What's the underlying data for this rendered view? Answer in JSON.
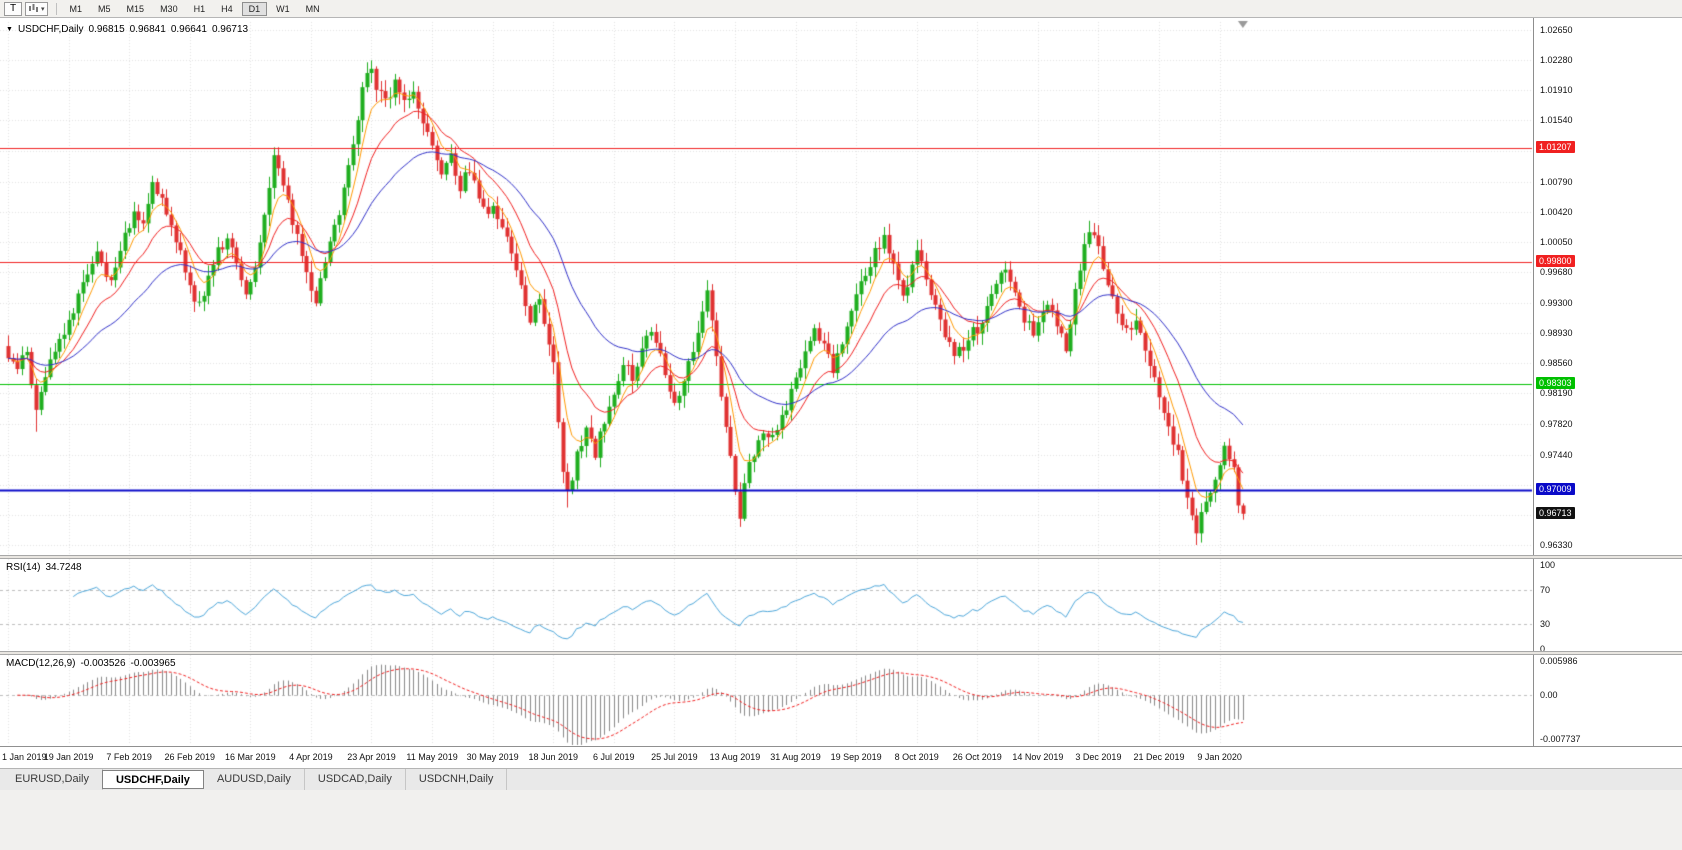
{
  "icons": {
    "text_tool": "T",
    "dropdown_arrow": "▾",
    "symbol_marker": "▼"
  },
  "toolbar": {
    "timeframes": [
      "M1",
      "M5",
      "M15",
      "M30",
      "H1",
      "H4",
      "D1",
      "W1",
      "MN"
    ],
    "active_timeframe": "D1"
  },
  "header": {
    "symbol": "USDCHF,Daily",
    "open": "0.96815",
    "high": "0.96841",
    "low": "0.96641",
    "close": "0.96713"
  },
  "indicators": {
    "rsi": {
      "label": "RSI(14)",
      "value": "34.7248",
      "levels": [
        70,
        30
      ],
      "scale": [
        {
          "text": "100",
          "value": 100
        },
        {
          "text": "70",
          "value": 70
        },
        {
          "text": "30",
          "value": 30
        },
        {
          "text": "0",
          "value": 0
        }
      ]
    },
    "macd": {
      "label": "MACD(12,26,9)",
      "value_macd": "-0.003526",
      "value_signal": "-0.003965",
      "scale": [
        {
          "text": "0.005986",
          "value": 0.005986
        },
        {
          "text": "0.00",
          "value": 0
        },
        {
          "text": "-0.007737",
          "value": -0.007737
        }
      ]
    }
  },
  "tabs": [
    {
      "label": "EURUSD,Daily",
      "active": false
    },
    {
      "label": "USDCHF,Daily",
      "active": true
    },
    {
      "label": "AUDUSD,Daily",
      "active": false
    },
    {
      "label": "USDCAD,Daily",
      "active": false
    },
    {
      "label": "USDCNH,Daily",
      "active": false
    }
  ],
  "chart_data": {
    "type": "candlestick",
    "symbol": "USDCHF",
    "timeframe": "Daily",
    "bars_total": 266,
    "x_ticks": {
      "bar_step": 13,
      "labels": [
        "1 Jan 2019",
        "19 Jan 2019",
        "7 Feb 2019",
        "26 Feb 2019",
        "16 Mar 2019",
        "4 Apr 2019",
        "23 Apr 2019",
        "11 May 2019",
        "30 May 2019",
        "18 Jun 2019",
        "6 Jul 2019",
        "25 Jul 2019",
        "13 Aug 2019",
        "31 Aug 2019",
        "19 Sep 2019",
        "8 Oct 2019",
        "26 Oct 2019",
        "14 Nov 2019",
        "3 Dec 2019",
        "21 Dec 2019",
        "9 Jan 2020"
      ]
    },
    "y_axis": {
      "tick_values": [
        1.0265,
        1.0228,
        1.0191,
        1.0154,
        1.0079,
        1.0042,
        1.0005,
        0.9968,
        0.993,
        0.9893,
        0.9856,
        0.9819,
        0.9782,
        0.9744,
        0.9633
      ],
      "hidden_grid": [
        1.0117,
        0.9707,
        0.967
      ]
    },
    "current_bar": {
      "open": 0.96815,
      "high": 0.96841,
      "low": 0.96641,
      "close": 0.96713
    },
    "horizontal_lines": [
      {
        "value": 1.01207,
        "color": "#f02020",
        "width": 1
      },
      {
        "value": 0.998,
        "color": "#f02020",
        "width": 1
      },
      {
        "value": 0.98303,
        "color": "#00c000",
        "width": 1
      },
      {
        "value": 0.97009,
        "color": "#0a0ac8",
        "width": 2
      }
    ],
    "moving_averages": [
      {
        "period": 6,
        "color": "#ff9900"
      },
      {
        "period": 14,
        "color": "#f02020"
      },
      {
        "period": 34,
        "color": "#3030c8"
      }
    ],
    "rsi": {
      "period": 14
    },
    "macd": {
      "fast": 12,
      "slow": 26,
      "signal": 9,
      "scale_max": 0.005986,
      "scale_min": -0.007737
    },
    "colors": {
      "up": "#1fae1f",
      "down": "#e03232",
      "grid": "#e3e3e3",
      "rsi_line": "#4da6d9",
      "rsi_levels": "#bdbdbd",
      "macd_hist": "#8a8a8a",
      "macd_signal": "#f02020"
    },
    "price_path": [
      [
        0,
        0.9868
      ],
      [
        2,
        0.9845
      ],
      [
        4,
        0.9872
      ],
      [
        6,
        0.9795
      ],
      [
        7,
        0.9822
      ],
      [
        9,
        0.9858
      ],
      [
        11,
        0.9888
      ],
      [
        13,
        0.9902
      ],
      [
        15,
        0.9938
      ],
      [
        17,
        0.9972
      ],
      [
        19,
        0.9995
      ],
      [
        21,
        0.9958
      ],
      [
        23,
        0.9972
      ],
      [
        25,
        1.0012
      ],
      [
        27,
        1.0038
      ],
      [
        29,
        1.0022
      ],
      [
        31,
        1.0082
      ],
      [
        33,
        1.0058
      ],
      [
        35,
        1.0025
      ],
      [
        37,
        0.9992
      ],
      [
        39,
        0.9948
      ],
      [
        41,
        0.9925
      ],
      [
        43,
        0.9962
      ],
      [
        45,
        0.9992
      ],
      [
        47,
        1.0012
      ],
      [
        49,
        0.9985
      ],
      [
        51,
        0.9942
      ],
      [
        53,
        0.9975
      ],
      [
        55,
        1.0042
      ],
      [
        57,
        1.0112
      ],
      [
        58,
        1.0095
      ],
      [
        60,
        1.0052
      ],
      [
        62,
        1.0008
      ],
      [
        64,
        0.9965
      ],
      [
        66,
        0.9932
      ],
      [
        68,
        0.9982
      ],
      [
        70,
        1.0022
      ],
      [
        72,
        1.0068
      ],
      [
        74,
        1.0125
      ],
      [
        76,
        1.0188
      ],
      [
        78,
        1.0222
      ],
      [
        79,
        1.0196
      ],
      [
        81,
        1.0178
      ],
      [
        83,
        1.0198
      ],
      [
        85,
        1.0172
      ],
      [
        87,
        1.0195
      ],
      [
        89,
        1.0148
      ],
      [
        91,
        1.0122
      ],
      [
        93,
        1.0085
      ],
      [
        95,
        1.0108
      ],
      [
        97,
        1.0072
      ],
      [
        99,
        1.0095
      ],
      [
        101,
        1.0058
      ],
      [
        103,
        1.0042
      ],
      [
        104,
        1.0052
      ],
      [
        106,
        1.0022
      ],
      [
        108,
        0.9988
      ],
      [
        110,
        0.9952
      ],
      [
        112,
        0.9912
      ],
      [
        114,
        0.9932
      ],
      [
        116,
        0.9885
      ],
      [
        117,
        0.9858
      ],
      [
        118,
        0.9788
      ],
      [
        119,
        0.9722
      ],
      [
        120,
        0.9695
      ],
      [
        121,
        0.9715
      ],
      [
        122,
        0.9748
      ],
      [
        124,
        0.9775
      ],
      [
        126,
        0.9742
      ],
      [
        128,
        0.9788
      ],
      [
        130,
        0.9822
      ],
      [
        132,
        0.9858
      ],
      [
        134,
        0.9838
      ],
      [
        136,
        0.9878
      ],
      [
        138,
        0.9898
      ],
      [
        140,
        0.9868
      ],
      [
        142,
        0.9828
      ],
      [
        143,
        0.9808
      ],
      [
        145,
        0.9838
      ],
      [
        147,
        0.9872
      ],
      [
        149,
        0.9912
      ],
      [
        150,
        0.9952
      ],
      [
        151,
        0.9905
      ],
      [
        153,
        0.9812
      ],
      [
        155,
        0.9738
      ],
      [
        156,
        0.9702
      ],
      [
        157,
        0.9668
      ],
      [
        158,
        0.9712
      ],
      [
        160,
        0.9748
      ],
      [
        162,
        0.9775
      ],
      [
        164,
        0.9762
      ],
      [
        166,
        0.9792
      ],
      [
        168,
        0.9818
      ],
      [
        169,
        0.9832
      ],
      [
        171,
        0.9868
      ],
      [
        173,
        0.9892
      ],
      [
        175,
        0.9875
      ],
      [
        177,
        0.9848
      ],
      [
        179,
        0.9885
      ],
      [
        181,
        0.9922
      ],
      [
        182,
        0.9938
      ],
      [
        184,
        0.9968
      ],
      [
        186,
        0.9992
      ],
      [
        188,
        1.0012
      ],
      [
        190,
        0.9972
      ],
      [
        192,
        0.9938
      ],
      [
        194,
        0.9975
      ],
      [
        195,
        0.9992
      ],
      [
        197,
        0.9962
      ],
      [
        199,
        0.9928
      ],
      [
        201,
        0.9892
      ],
      [
        203,
        0.9862
      ],
      [
        205,
        0.9878
      ],
      [
        207,
        0.9902
      ],
      [
        208,
        0.9892
      ],
      [
        210,
        0.9928
      ],
      [
        212,
        0.9958
      ],
      [
        214,
        0.9972
      ],
      [
        216,
        0.9945
      ],
      [
        218,
        0.9912
      ],
      [
        220,
        0.9895
      ],
      [
        221,
        0.9902
      ],
      [
        223,
        0.9932
      ],
      [
        225,
        0.9908
      ],
      [
        227,
        0.9878
      ],
      [
        229,
        0.9942
      ],
      [
        231,
        1.0008
      ],
      [
        232,
        1.0022
      ],
      [
        234,
        0.9995
      ],
      [
        236,
        0.9958
      ],
      [
        238,
        0.9922
      ],
      [
        240,
        0.9895
      ],
      [
        242,
        0.9908
      ],
      [
        244,
        0.9872
      ],
      [
        246,
        0.9838
      ],
      [
        247,
        0.9812
      ],
      [
        249,
        0.9775
      ],
      [
        251,
        0.9742
      ],
      [
        253,
        0.9695
      ],
      [
        255,
        0.9648
      ],
      [
        256,
        0.9668
      ],
      [
        258,
        0.9702
      ],
      [
        260,
        0.9735
      ],
      [
        261,
        0.9748
      ],
      [
        263,
        0.9722
      ],
      [
        264,
        0.96815
      ],
      [
        265,
        0.96713
      ]
    ],
    "wick_lows": {
      "6": 0.9772,
      "120": 0.9679,
      "157": 0.9659,
      "255": 0.9633
    },
    "wick_highs": {
      "57": 1.0121,
      "78": 1.0226,
      "150": 0.9958,
      "232": 1.0028
    }
  }
}
